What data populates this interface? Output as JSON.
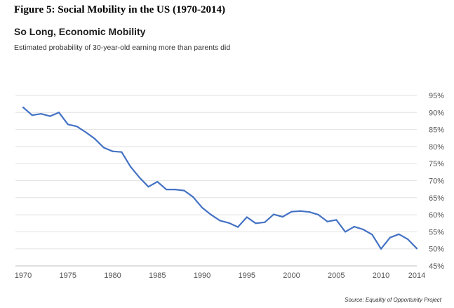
{
  "figure_caption": "Figure 5: Social Mobility in the US (1970-2014)",
  "source": "Source: Equality of Opportunity Project",
  "colors": {
    "line": "#4472c4",
    "grid": "#e2e2e2",
    "axis": "#bfbfbf"
  },
  "chart_data": {
    "type": "line",
    "title": "So Long, Economic Mobility",
    "subtitle": "Estimated probability of 30-year-old earning more than parents did",
    "xlabel": "",
    "ylabel": "",
    "xlim": [
      1970,
      2014
    ],
    "ylim": [
      45,
      95
    ],
    "x_ticks": [
      1970,
      1975,
      1980,
      1985,
      1990,
      1995,
      2000,
      2005,
      2010,
      2014
    ],
    "y_ticks": [
      45,
      50,
      55,
      60,
      65,
      70,
      75,
      80,
      85,
      90,
      95
    ],
    "y_tick_suffix": "%",
    "y_axis_side": "right",
    "grid": true,
    "series": [
      {
        "name": "Probability",
        "x": [
          1970,
          1971,
          1972,
          1973,
          1974,
          1975,
          1976,
          1977,
          1978,
          1979,
          1980,
          1981,
          1982,
          1983,
          1984,
          1985,
          1986,
          1987,
          1988,
          1989,
          1990,
          1991,
          1992,
          1993,
          1994,
          1995,
          1996,
          1997,
          1998,
          1999,
          2000,
          2001,
          2002,
          2003,
          2004,
          2005,
          2006,
          2007,
          2008,
          2009,
          2010,
          2011,
          2012,
          2013,
          2014
        ],
        "values": [
          91.5,
          89.2,
          89.6,
          88.9,
          90.0,
          86.5,
          85.9,
          84.2,
          82.3,
          79.7,
          78.6,
          78.4,
          74.1,
          70.9,
          68.2,
          69.7,
          67.4,
          67.4,
          67.1,
          65.2,
          62.1,
          60.0,
          58.3,
          57.6,
          56.4,
          59.3,
          57.5,
          57.8,
          60.1,
          59.4,
          60.9,
          61.1,
          60.8,
          60.0,
          58.0,
          58.5,
          55.0,
          56.5,
          55.7,
          54.2,
          50.0,
          53.3,
          54.3,
          52.8,
          50.1
        ]
      }
    ]
  }
}
